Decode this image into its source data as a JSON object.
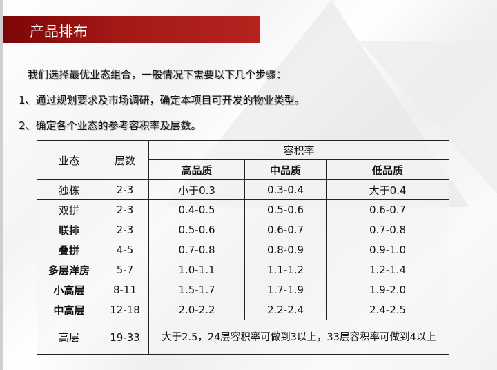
{
  "slide_title": "产品排布",
  "intro": "我们选择最优业态组合，一般情况下需要以下几个步骤：",
  "steps": [
    "1、通过规划要求及市场调研，确定本项目可开发的物业类型。",
    "2、确定各个业态的参考容积率及层数。"
  ],
  "table": {
    "headers": {
      "type": "业态",
      "floors": "层数",
      "far": "容积率",
      "high": "高品质",
      "mid": "中品质",
      "low": "低品质"
    },
    "rows": [
      {
        "type": "独栋",
        "floors": "2-3",
        "high": "小于0.3",
        "mid": "0.3-0.4",
        "low": "大于0.4"
      },
      {
        "type": "双拼",
        "floors": "2-3",
        "high": "0.4-0.5",
        "mid": "0.5-0.6",
        "low": "0.6-0.7"
      },
      {
        "type": "联排",
        "floors": "2-3",
        "high": "0.5-0.6",
        "mid": "0.6-0.7",
        "low": "0.7-0.8"
      },
      {
        "type": "叠拼",
        "floors": "4-5",
        "high": "0.7-0.8",
        "mid": "0.8-0.9",
        "low": "0.9-1.0"
      },
      {
        "type": "多层洋房",
        "floors": "5-7",
        "high": "1.0-1.1",
        "mid": "1.1-1.2",
        "low": "1.2-1.4"
      },
      {
        "type": "小高层",
        "floors": "8-11",
        "high": "1.5-1.7",
        "mid": "1.7-1.9",
        "low": "1.9-2.0"
      },
      {
        "type": "中高层",
        "floors": "12-18",
        "high": "2.0-2.2",
        "mid": "2.2-2.4",
        "low": "2.4-2.5"
      }
    ],
    "last_row": {
      "type": "高层",
      "floors": "19-33",
      "note": "大于2.5，24层容积率可做到3以上，33层容积率可做到4以上"
    }
  },
  "colors": {
    "title_bar_start": "#7c0606",
    "title_bar_end": "#b6231f"
  }
}
